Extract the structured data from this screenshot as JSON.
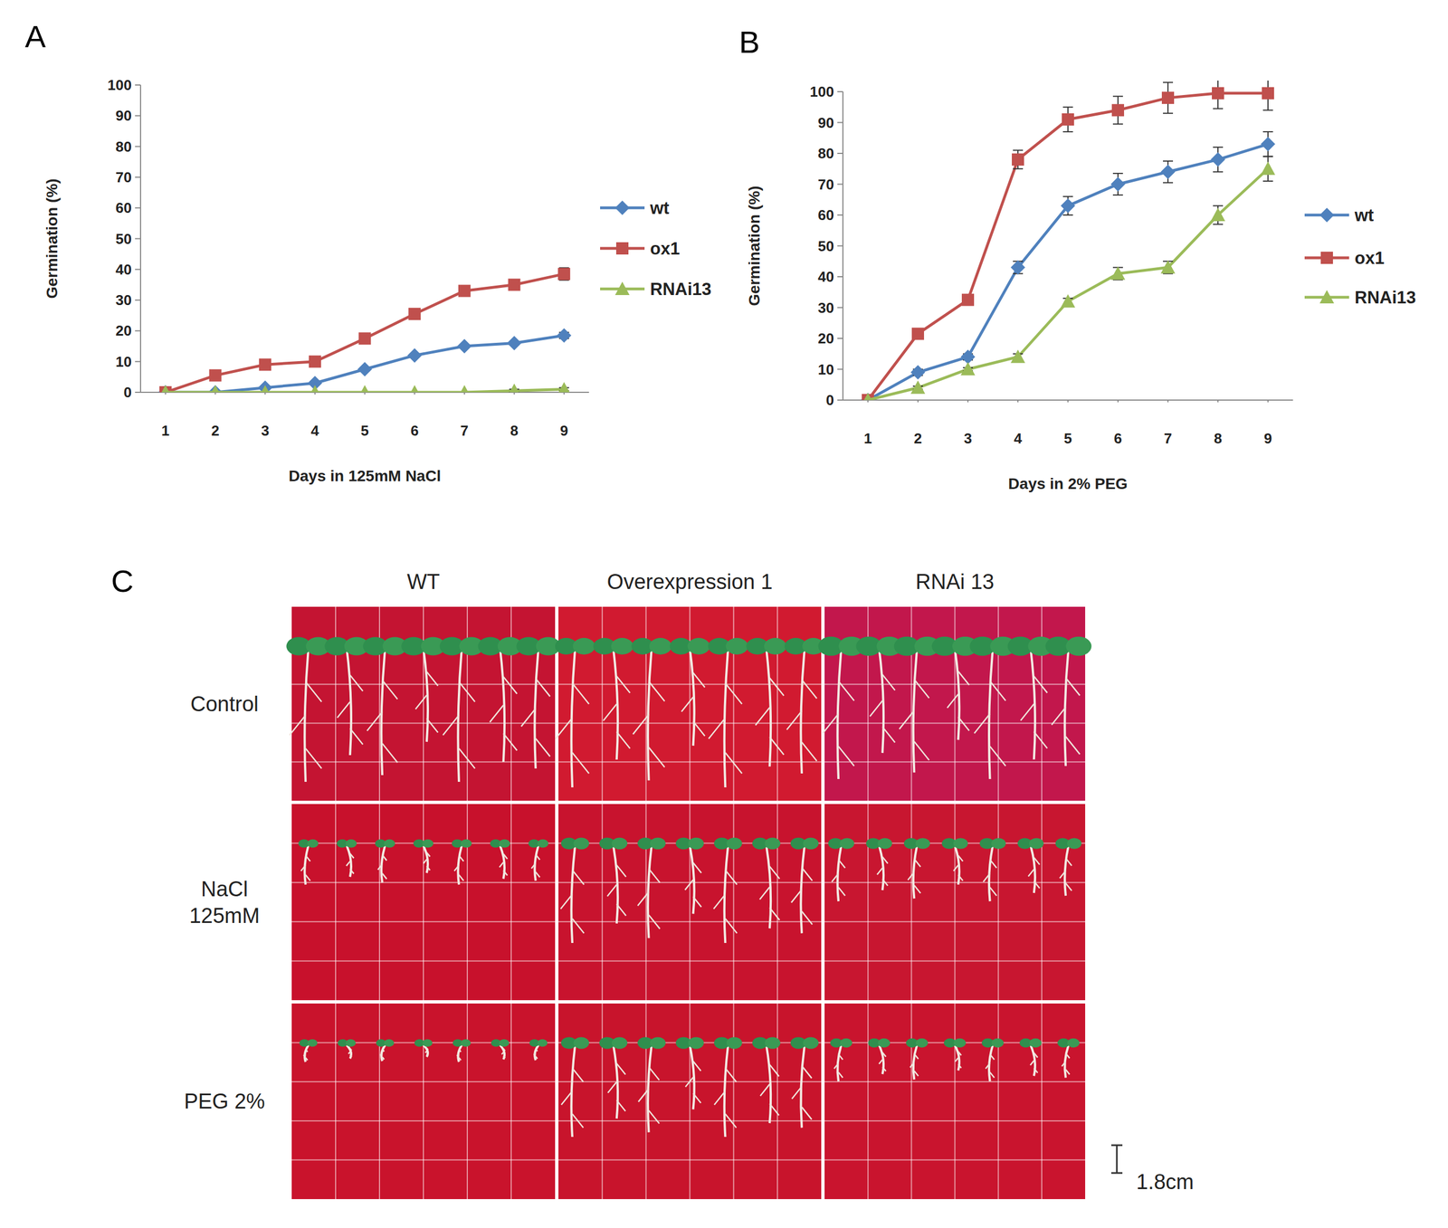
{
  "chart_data": [
    {
      "type": "line",
      "panel_label": "A",
      "x_label": "Days in 125mM NaCl",
      "y_label": "Germination (%)",
      "x": [
        1,
        2,
        3,
        4,
        5,
        6,
        7,
        8,
        9
      ],
      "xlim": [
        0.5,
        9.5
      ],
      "xticks": [
        1,
        2,
        3,
        4,
        5,
        6,
        7,
        8,
        9
      ],
      "ylim": [
        0,
        100
      ],
      "yticks": [
        0,
        10,
        20,
        30,
        40,
        50,
        60,
        70,
        80,
        90,
        100
      ],
      "grid": false,
      "legend": "right",
      "series": [
        {
          "name": "wt",
          "color": "#4f81bd",
          "marker": "diamond",
          "values": [
            0,
            0,
            1.5,
            3,
            7.5,
            12,
            15,
            16,
            18.5
          ],
          "errors": [
            0,
            0,
            0.5,
            0.5,
            0.5,
            0.5,
            0.5,
            0.5,
            1
          ]
        },
        {
          "name": "ox1",
          "color": "#c0504d",
          "marker": "square",
          "values": [
            0,
            5.5,
            9,
            10,
            17.5,
            25.5,
            33,
            35,
            38.5
          ],
          "errors": [
            0,
            0.5,
            0.5,
            0.5,
            1,
            1,
            1.5,
            1.5,
            2
          ]
        },
        {
          "name": "RNAi13",
          "color": "#9bbb59",
          "marker": "triangle",
          "values": [
            0,
            0,
            0,
            0,
            0,
            0,
            0,
            0.5,
            1
          ],
          "errors": [
            0,
            0,
            0,
            0,
            0,
            0,
            0,
            0.5,
            0.5
          ]
        }
      ]
    },
    {
      "type": "line",
      "panel_label": "B",
      "x_label": "Days in 2% PEG",
      "y_label": "Germination (%)",
      "x": [
        1,
        2,
        3,
        4,
        5,
        6,
        7,
        8,
        9
      ],
      "xlim": [
        0.5,
        9.5
      ],
      "xticks": [
        1,
        2,
        3,
        4,
        5,
        6,
        7,
        8,
        9
      ],
      "ylim": [
        0,
        100
      ],
      "yticks": [
        0,
        10,
        20,
        30,
        40,
        50,
        60,
        70,
        80,
        90,
        100
      ],
      "grid": false,
      "legend": "right",
      "series": [
        {
          "name": "wt",
          "color": "#4f81bd",
          "marker": "diamond",
          "values": [
            0,
            9,
            14,
            43,
            63,
            70,
            74,
            78,
            83
          ],
          "errors": [
            0,
            1,
            1,
            2,
            3,
            3.5,
            3.5,
            4,
            4
          ]
        },
        {
          "name": "ox1",
          "color": "#c0504d",
          "marker": "square",
          "values": [
            0,
            21.5,
            32.5,
            78,
            91,
            94,
            98,
            99.5,
            99.5
          ],
          "errors": [
            0,
            1,
            1,
            3,
            4,
            4.5,
            5,
            5,
            5.5
          ]
        },
        {
          "name": "RNAi13",
          "color": "#9bbb59",
          "marker": "triangle",
          "values": [
            0,
            4,
            10,
            14,
            32,
            41,
            43,
            60,
            75
          ],
          "errors": [
            0,
            0.5,
            0.5,
            1,
            1,
            2,
            2,
            3,
            4
          ]
        }
      ]
    }
  ],
  "panel_c": {
    "label": "C",
    "columns": [
      "WT",
      "Overexpression 1",
      "RNAi 13"
    ],
    "rows": [
      [
        "Control"
      ],
      [
        "NaCl",
        "125mM"
      ],
      [
        "PEG 2%"
      ]
    ],
    "scale_bar": "1.8cm"
  }
}
